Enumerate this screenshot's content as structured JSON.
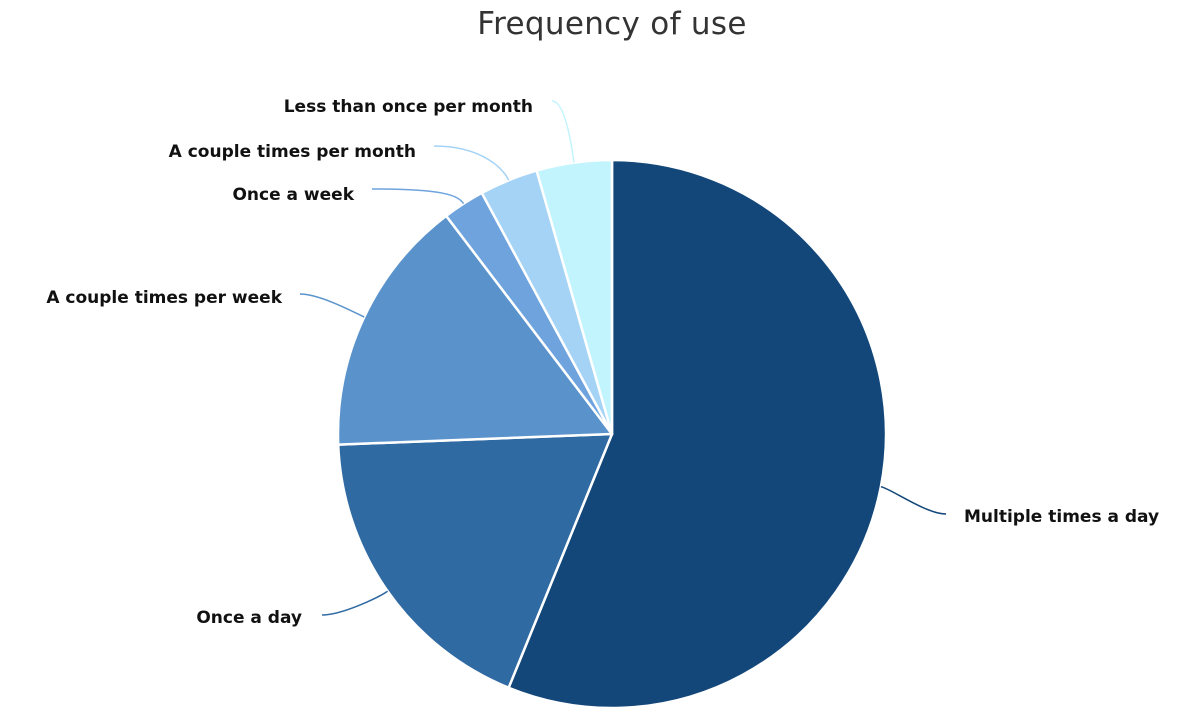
{
  "chart_data": {
    "type": "pie",
    "title": "Frequency of use",
    "slices": [
      {
        "label": "Multiple times a day",
        "value": 57,
        "color": "#13477a"
      },
      {
        "label": "Once a day",
        "value": 18.5,
        "color": "#306aa3"
      },
      {
        "label": "A couple times per week",
        "value": 15.5,
        "color": "#5a93cc"
      },
      {
        "label": "Once a week",
        "value": 2.5,
        "color": "#6ea3de"
      },
      {
        "label": "A couple times per month",
        "value": 3.5,
        "color": "#a5d3f6"
      },
      {
        "label": "Less than once per month",
        "value": 4.5,
        "color": "#c2f4fd"
      }
    ],
    "legend": "none",
    "data_labels": "outside with connector lines"
  }
}
